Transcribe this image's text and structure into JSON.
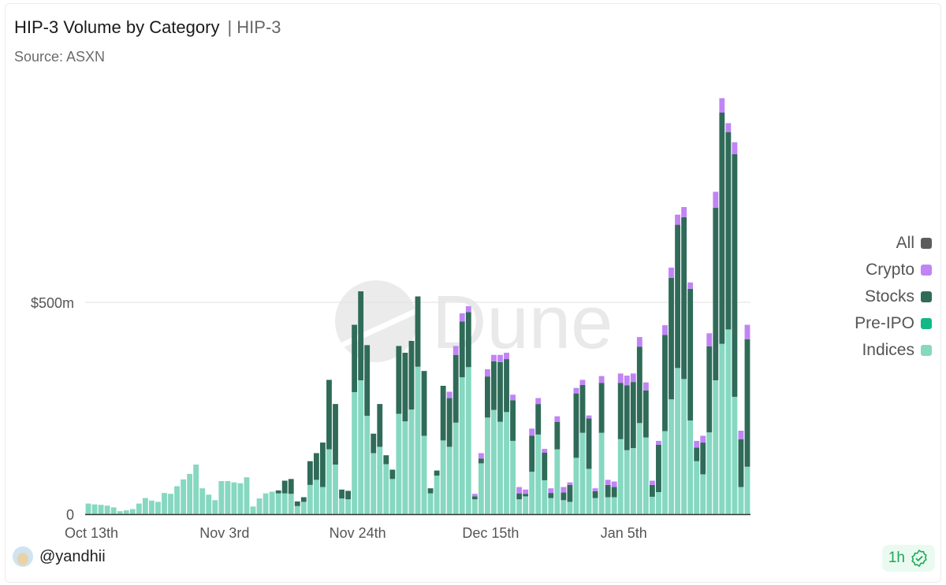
{
  "header": {
    "title": "HIP-3 Volume by Category",
    "subtitle": "| HIP-3",
    "source": "Source: ASXN"
  },
  "watermark": "Dune",
  "footer": {
    "user": "@yandhii",
    "freshness": "1h",
    "freshness_icon": "verified-check-icon"
  },
  "colors": {
    "All": "#5c5c5c",
    "Crypto": "#c084f5",
    "Stocks": "#2f6b58",
    "Pre-IPO": "#12b886",
    "Indices": "#86d8c0"
  },
  "chart_data": {
    "type": "bar",
    "stacked": true,
    "title": "HIP-3 Volume by Category",
    "ylim": [
      0,
      1000
    ],
    "y_unit": "$m",
    "yticks": [
      {
        "value": 0,
        "label": "0"
      },
      {
        "value": 500,
        "label": "$500m"
      }
    ],
    "xticks": [
      "Oct 13th",
      "Nov 3rd",
      "Nov 24th",
      "Dec 15th",
      "Jan 5th"
    ],
    "xtick_categories": [
      "Oct 13",
      "Nov 3",
      "Nov 24",
      "Dec 15",
      "Jan 5"
    ],
    "grid": true,
    "legend_position": "right",
    "legend": [
      "All",
      "Crypto",
      "Stocks",
      "Pre-IPO",
      "Indices"
    ],
    "categories": [
      "Oct 13",
      "Oct 14",
      "Oct 15",
      "Oct 16",
      "Oct 17",
      "Oct 18",
      "Oct 19",
      "Oct 20",
      "Oct 21",
      "Oct 22",
      "Oct 23",
      "Oct 24",
      "Oct 25",
      "Oct 26",
      "Oct 27",
      "Oct 28",
      "Oct 29",
      "Oct 30",
      "Oct 31",
      "Nov 1",
      "Nov 2",
      "Nov 3",
      "Nov 4",
      "Nov 5",
      "Nov 6",
      "Nov 7",
      "Nov 8",
      "Nov 9",
      "Nov 10",
      "Nov 11",
      "Nov 12",
      "Nov 13",
      "Nov 14",
      "Nov 15",
      "Nov 16",
      "Nov 17",
      "Nov 18",
      "Nov 19",
      "Nov 20",
      "Nov 21",
      "Nov 22",
      "Nov 23",
      "Nov 24",
      "Nov 25",
      "Nov 26",
      "Nov 27",
      "Nov 28",
      "Nov 29",
      "Nov 30",
      "Dec 1",
      "Dec 2",
      "Dec 3",
      "Dec 4",
      "Dec 5",
      "Dec 6",
      "Dec 7",
      "Dec 8",
      "Dec 9",
      "Dec 10",
      "Dec 11",
      "Dec 12",
      "Dec 13",
      "Dec 14",
      "Dec 15",
      "Dec 16",
      "Dec 17",
      "Dec 18",
      "Dec 19",
      "Dec 20",
      "Dec 21",
      "Dec 22",
      "Dec 23",
      "Dec 24",
      "Dec 25",
      "Dec 26",
      "Dec 27",
      "Dec 28",
      "Dec 29",
      "Dec 30",
      "Dec 31",
      "Jan 1",
      "Jan 2",
      "Jan 3",
      "Jan 4",
      "Jan 5",
      "Jan 6",
      "Jan 7",
      "Jan 8",
      "Jan 9",
      "Jan 10",
      "Jan 11",
      "Jan 12",
      "Jan 13",
      "Jan 14",
      "Jan 15",
      "Jan 16",
      "Jan 17",
      "Jan 18",
      "Jan 19",
      "Jan 20",
      "Jan 21",
      "Jan 22",
      "Jan 23",
      "Jan 24",
      "Jan 25"
    ],
    "series": [
      {
        "name": "Indices",
        "values": [
          25,
          23,
          22,
          20,
          16,
          7,
          9,
          12,
          25,
          38,
          32,
          29,
          50,
          48,
          66,
          82,
          95,
          117,
          61,
          46,
          33,
          78,
          78,
          75,
          73,
          87,
          18,
          37,
          49,
          53,
          49,
          49,
          48,
          19,
          29,
          69,
          81,
          64,
          153,
          117,
          37,
          35,
          288,
          316,
          232,
          144,
          159,
          118,
          83,
          237,
          219,
          247,
          348,
          185,
          49,
          91,
          174,
          159,
          216,
          323,
          347,
          35,
          120,
          228,
          246,
          218,
          241,
          173,
          35,
          42,
          100,
          188,
          80,
          38,
          153,
          33,
          29,
          133,
          192,
          107,
          38,
          192,
          40,
          40,
          177,
          151,
          156,
          215,
          181,
          41,
          52,
          196,
          271,
          345,
          319,
          221,
          125,
          94,
          193,
          316,
          402,
          436,
          277,
          64,
          112
        ]
      },
      {
        "name": "Pre-IPO",
        "values": [
          0,
          0,
          0,
          0,
          0,
          0,
          0,
          0,
          0,
          0,
          0,
          0,
          0,
          0,
          0,
          0,
          0,
          0,
          0,
          0,
          0,
          0,
          0,
          0,
          0,
          0,
          0,
          0,
          0,
          0,
          0,
          0,
          0,
          0,
          0,
          0,
          0,
          0,
          0,
          0,
          0,
          0,
          0,
          0,
          0,
          0,
          0,
          0,
          0,
          0,
          0,
          0,
          0,
          0,
          0,
          0,
          0,
          0,
          0,
          0,
          0,
          0,
          0,
          0,
          0,
          0,
          0,
          0,
          0,
          0,
          0,
          0,
          0,
          0,
          0,
          0,
          0,
          0,
          0,
          0,
          0,
          0,
          0,
          0,
          0,
          0,
          0,
          0,
          0,
          0,
          0,
          0,
          0,
          0,
          0,
          0,
          0,
          0,
          0,
          0,
          0,
          0,
          0,
          0,
          0
        ]
      },
      {
        "name": "Stocks",
        "values": [
          0,
          0,
          0,
          0,
          0,
          0,
          0,
          0,
          0,
          0,
          0,
          0,
          0,
          0,
          0,
          0,
          0,
          0,
          0,
          0,
          0,
          0,
          0,
          0,
          0,
          0,
          0,
          0,
          0,
          0,
          7,
          30,
          35,
          11,
          11,
          56,
          63,
          105,
          164,
          143,
          21,
          20,
          159,
          210,
          167,
          46,
          101,
          21,
          22,
          160,
          162,
          162,
          166,
          153,
          12,
          12,
          129,
          115,
          160,
          132,
          130,
          7,
          11,
          97,
          115,
          141,
          125,
          96,
          14,
          6,
          85,
          72,
          65,
          12,
          65,
          18,
          40,
          152,
          113,
          119,
          16,
          118,
          29,
          24,
          133,
          153,
          156,
          180,
          111,
          28,
          112,
          227,
          287,
          338,
          382,
          311,
          32,
          75,
          203,
          407,
          546,
          466,
          573,
          113,
          301
        ]
      },
      {
        "name": "Crypto",
        "values": [
          0,
          0,
          0,
          0,
          0,
          0,
          0,
          0,
          0,
          0,
          0,
          0,
          0,
          0,
          0,
          0,
          0,
          0,
          0,
          0,
          0,
          0,
          0,
          0,
          0,
          0,
          0,
          0,
          0,
          0,
          0,
          0,
          0,
          0,
          0,
          0,
          0,
          0,
          0,
          0,
          0,
          0,
          0,
          0,
          0,
          0,
          0,
          0,
          0,
          0,
          0,
          0,
          0,
          0,
          0,
          0,
          0,
          15,
          21,
          19,
          14,
          6,
          13,
          17,
          15,
          17,
          15,
          13,
          15,
          10,
          17,
          14,
          9,
          11,
          13,
          13,
          6,
          13,
          12,
          7,
          7,
          16,
          12,
          13,
          22,
          23,
          20,
          23,
          19,
          10,
          9,
          23,
          24,
          24,
          24,
          15,
          16,
          16,
          31,
          38,
          34,
          21,
          28,
          20,
          34
        ]
      }
    ]
  }
}
